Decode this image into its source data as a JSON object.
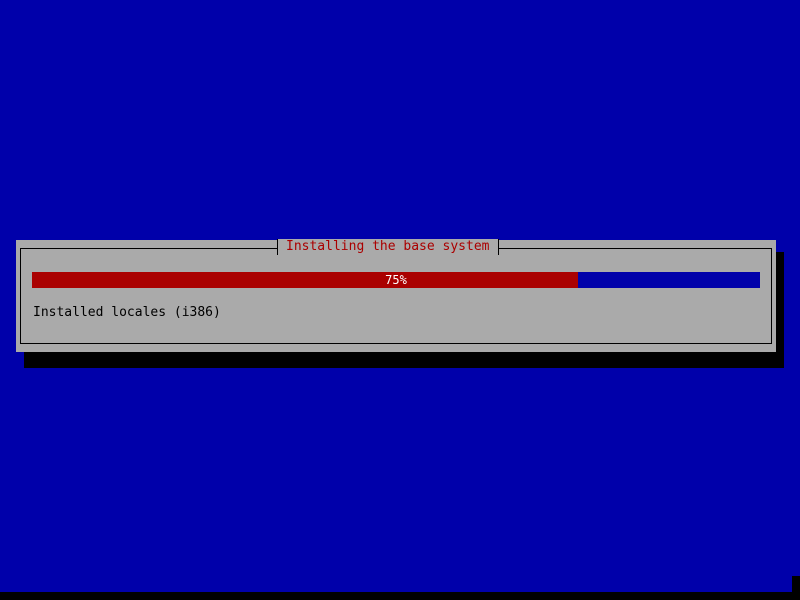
{
  "dialog": {
    "title": "Installing the base system",
    "progress": {
      "percent": 75,
      "label": "75%"
    },
    "status": "Installed locales (i386)"
  },
  "colors": {
    "background": "#0000aa",
    "dialog": "#aaaaaa",
    "progress_fill": "#aa0000",
    "title": "#aa0000"
  }
}
